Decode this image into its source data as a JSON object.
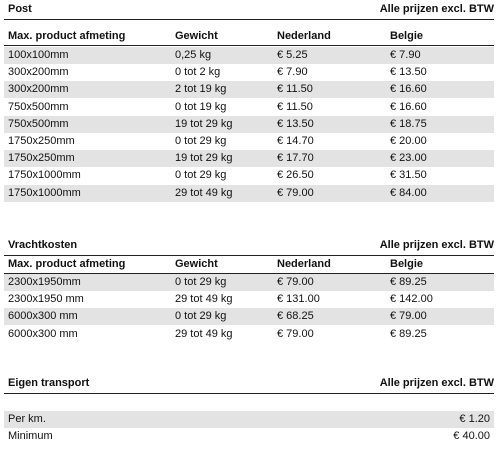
{
  "sections": [
    {
      "title": "Post",
      "note": "Alle prijzen excl. BTW",
      "header": [
        "Max. product afmeting",
        "Gewicht",
        "Nederland",
        "Belgie"
      ],
      "rows": [
        [
          "100x100mm",
          "0,25 kg",
          "€ 5.25",
          "€ 7.90"
        ],
        [
          "300x200mm",
          "0 tot 2 kg",
          "€ 7.90",
          "€ 13.50"
        ],
        [
          "300x200mm",
          "2 tot 19 kg",
          "€ 11.50",
          "€ 16.60"
        ],
        [
          "750x500mm",
          "0 tot 19 kg",
          "€ 11.50",
          "€ 16.60"
        ],
        [
          "750x500mm",
          "19 tot 29 kg",
          "€ 13.50",
          "€ 18.75"
        ],
        [
          "1750x250mm",
          "0 tot 29 kg",
          "€ 14.70",
          "€ 20.00"
        ],
        [
          "1750x250mm",
          "19 tot 29 kg",
          "€ 17.70",
          "€ 23.00"
        ],
        [
          "1750x1000mm",
          "0 tot 29 kg",
          "€ 26.50",
          "€ 31.50"
        ],
        [
          "1750x1000mm",
          "29 tot 49 kg",
          "€ 79.00",
          "€ 84.00"
        ]
      ]
    },
    {
      "title": "Vrachtkosten",
      "note": "Alle prijzen excl. BTW",
      "header": [
        "Max. product afmeting",
        "Gewicht",
        "Nederland",
        "Belgie"
      ],
      "rows": [
        [
          "2300x1950mm",
          "0 tot 29 kg",
          "€ 79.00",
          "€ 89.25"
        ],
        [
          "2300x1950 mm",
          "29 tot 49 kg",
          "€ 131.00",
          "€ 142.00"
        ],
        [
          "6000x300 mm",
          "0 tot 29 kg",
          "€ 68.25",
          "€ 79.00"
        ],
        [
          "6000x300 mm",
          "29 tot 49 kg",
          "€ 79.00",
          "€ 89.25"
        ]
      ]
    },
    {
      "title": "Eigen transport",
      "note": "Alle prijzen excl. BTW",
      "rows": [
        [
          "Per km.",
          "€ 1.20"
        ],
        [
          "Minimum",
          "€ 40.00"
        ]
      ]
    }
  ]
}
